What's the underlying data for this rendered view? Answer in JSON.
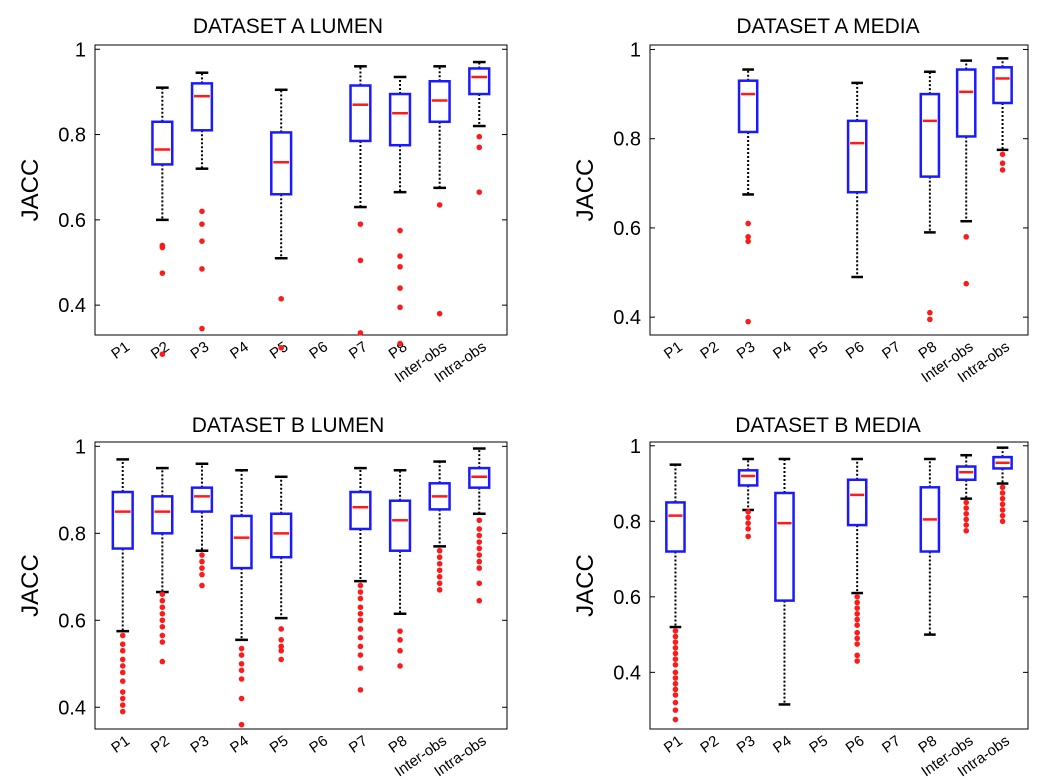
{
  "chart_data": [
    {
      "type": "box",
      "title": "DATASET  A  LUMEN",
      "ylabel": "JACC",
      "ylim": [
        0.33,
        1.01
      ],
      "yticks": [
        "0.4",
        "0.6",
        "0.8",
        "1"
      ],
      "categories": [
        "P1",
        "P2",
        "P3",
        "P4",
        "P5",
        "P6",
        "P7",
        "P8",
        "Inter-obs",
        "Intra-obs"
      ],
      "boxes": [
        null,
        {
          "whisker_low": 0.6,
          "q1": 0.73,
          "median": 0.765,
          "q3": 0.83,
          "whisker_high": 0.91,
          "outliers": [
            0.54,
            0.535,
            0.475,
            0.285
          ]
        },
        {
          "whisker_low": 0.72,
          "q1": 0.81,
          "median": 0.89,
          "q3": 0.92,
          "whisker_high": 0.945,
          "outliers": [
            0.62,
            0.59,
            0.55,
            0.485,
            0.345
          ]
        },
        null,
        {
          "whisker_low": 0.51,
          "q1": 0.66,
          "median": 0.735,
          "q3": 0.805,
          "whisker_high": 0.905,
          "outliers": [
            0.415,
            0.3
          ]
        },
        null,
        {
          "whisker_low": 0.63,
          "q1": 0.785,
          "median": 0.87,
          "q3": 0.915,
          "whisker_high": 0.96,
          "outliers": [
            0.59,
            0.505,
            0.335
          ]
        },
        {
          "whisker_low": 0.665,
          "q1": 0.775,
          "median": 0.85,
          "q3": 0.895,
          "whisker_high": 0.935,
          "outliers": [
            0.575,
            0.515,
            0.49,
            0.44,
            0.395,
            0.31
          ]
        },
        {
          "whisker_low": 0.675,
          "q1": 0.83,
          "median": 0.88,
          "q3": 0.925,
          "whisker_high": 0.96,
          "outliers": [
            0.635,
            0.38
          ]
        },
        {
          "whisker_low": 0.82,
          "q1": 0.895,
          "median": 0.935,
          "q3": 0.955,
          "whisker_high": 0.97,
          "outliers": [
            0.795,
            0.77,
            0.665
          ]
        }
      ]
    },
    {
      "type": "box",
      "title": "DATASET  A  MEDIA",
      "ylabel": "JACC",
      "ylim": [
        0.36,
        1.01
      ],
      "yticks": [
        "0.4",
        "0.6",
        "0.8",
        "1"
      ],
      "categories": [
        "P1",
        "P2",
        "P3",
        "P4",
        "P5",
        "P6",
        "P7",
        "P8",
        "Inter-obs",
        "Intra-obs"
      ],
      "boxes": [
        null,
        null,
        {
          "whisker_low": 0.675,
          "q1": 0.815,
          "median": 0.9,
          "q3": 0.93,
          "whisker_high": 0.955,
          "outliers": [
            0.61,
            0.58,
            0.57,
            0.39
          ]
        },
        null,
        null,
        {
          "whisker_low": 0.49,
          "q1": 0.68,
          "median": 0.79,
          "q3": 0.84,
          "whisker_high": 0.925,
          "outliers": []
        },
        null,
        {
          "whisker_low": 0.59,
          "q1": 0.715,
          "median": 0.84,
          "q3": 0.9,
          "whisker_high": 0.95,
          "outliers": [
            0.41,
            0.395
          ]
        },
        {
          "whisker_low": 0.615,
          "q1": 0.805,
          "median": 0.905,
          "q3": 0.955,
          "whisker_high": 0.975,
          "outliers": [
            0.58,
            0.475
          ]
        },
        {
          "whisker_low": 0.775,
          "q1": 0.88,
          "median": 0.935,
          "q3": 0.96,
          "whisker_high": 0.98,
          "outliers": [
            0.765,
            0.745,
            0.73
          ]
        }
      ]
    },
    {
      "type": "box",
      "title": "DATASET  B  LUMEN",
      "ylabel": "JACC",
      "ylim": [
        0.35,
        1.01
      ],
      "yticks": [
        "0.4",
        "0.6",
        "0.8",
        "1"
      ],
      "categories": [
        "P1",
        "P2",
        "P3",
        "P4",
        "P5",
        "P6",
        "P7",
        "P8",
        "Inter-obs",
        "Intra-obs"
      ],
      "boxes": [
        {
          "whisker_low": 0.575,
          "q1": 0.765,
          "median": 0.85,
          "q3": 0.895,
          "whisker_high": 0.97,
          "outliers": [
            0.565,
            0.545,
            0.53,
            0.51,
            0.495,
            0.48,
            0.46,
            0.435,
            0.42,
            0.405,
            0.39
          ]
        },
        {
          "whisker_low": 0.665,
          "q1": 0.8,
          "median": 0.85,
          "q3": 0.885,
          "whisker_high": 0.95,
          "outliers": [
            0.66,
            0.645,
            0.63,
            0.615,
            0.6,
            0.585,
            0.565,
            0.55,
            0.505
          ]
        },
        {
          "whisker_low": 0.76,
          "q1": 0.85,
          "median": 0.885,
          "q3": 0.905,
          "whisker_high": 0.96,
          "outliers": [
            0.75,
            0.735,
            0.72,
            0.705,
            0.68
          ]
        },
        {
          "whisker_low": 0.555,
          "q1": 0.72,
          "median": 0.79,
          "q3": 0.84,
          "whisker_high": 0.945,
          "outliers": [
            0.535,
            0.52,
            0.5,
            0.485,
            0.465,
            0.42,
            0.36
          ]
        },
        {
          "whisker_low": 0.605,
          "q1": 0.745,
          "median": 0.8,
          "q3": 0.845,
          "whisker_high": 0.93,
          "outliers": [
            0.58,
            0.555,
            0.54,
            0.53,
            0.51
          ]
        },
        null,
        {
          "whisker_low": 0.69,
          "q1": 0.81,
          "median": 0.86,
          "q3": 0.895,
          "whisker_high": 0.95,
          "outliers": [
            0.68,
            0.665,
            0.65,
            0.63,
            0.615,
            0.6,
            0.58,
            0.56,
            0.54,
            0.52,
            0.49,
            0.44
          ]
        },
        {
          "whisker_low": 0.615,
          "q1": 0.76,
          "median": 0.83,
          "q3": 0.875,
          "whisker_high": 0.945,
          "outliers": [
            0.575,
            0.555,
            0.53,
            0.495
          ]
        },
        {
          "whisker_low": 0.77,
          "q1": 0.855,
          "median": 0.885,
          "q3": 0.915,
          "whisker_high": 0.965,
          "outliers": [
            0.76,
            0.745,
            0.73,
            0.715,
            0.7,
            0.685,
            0.67
          ]
        },
        {
          "whisker_low": 0.845,
          "q1": 0.905,
          "median": 0.93,
          "q3": 0.95,
          "whisker_high": 0.995,
          "outliers": [
            0.83,
            0.81,
            0.795,
            0.78,
            0.765,
            0.75,
            0.735,
            0.72,
            0.685,
            0.645
          ]
        }
      ]
    },
    {
      "type": "box",
      "title": "DATASET  B  MEDIA",
      "ylabel": "JACC",
      "ylim": [
        0.25,
        1.01
      ],
      "yticks": [
        "0.4",
        "0.6",
        "0.8",
        "1"
      ],
      "categories": [
        "P1",
        "P2",
        "P3",
        "P4",
        "P5",
        "P6",
        "P7",
        "P8",
        "Inter-obs",
        "Intra-obs"
      ],
      "boxes": [
        {
          "whisker_low": 0.52,
          "q1": 0.72,
          "median": 0.815,
          "q3": 0.85,
          "whisker_high": 0.95,
          "outliers": [
            0.51,
            0.495,
            0.48,
            0.465,
            0.45,
            0.435,
            0.42,
            0.4,
            0.385,
            0.37,
            0.355,
            0.34,
            0.32,
            0.3,
            0.275
          ]
        },
        null,
        {
          "whisker_low": 0.83,
          "q1": 0.895,
          "median": 0.92,
          "q3": 0.935,
          "whisker_high": 0.965,
          "outliers": [
            0.825,
            0.81,
            0.795,
            0.78,
            0.76
          ]
        },
        {
          "whisker_low": 0.315,
          "q1": 0.59,
          "median": 0.795,
          "q3": 0.875,
          "whisker_high": 0.965,
          "outliers": []
        },
        null,
        {
          "whisker_low": 0.61,
          "q1": 0.79,
          "median": 0.87,
          "q3": 0.91,
          "whisker_high": 0.965,
          "outliers": [
            0.6,
            0.585,
            0.57,
            0.555,
            0.54,
            0.525,
            0.505,
            0.49,
            0.475,
            0.445,
            0.43
          ]
        },
        null,
        {
          "whisker_low": 0.5,
          "q1": 0.72,
          "median": 0.805,
          "q3": 0.89,
          "whisker_high": 0.965,
          "outliers": []
        },
        {
          "whisker_low": 0.86,
          "q1": 0.91,
          "median": 0.93,
          "q3": 0.945,
          "whisker_high": 0.975,
          "outliers": [
            0.85,
            0.835,
            0.82,
            0.805,
            0.79,
            0.775
          ]
        },
        {
          "whisker_low": 0.9,
          "q1": 0.94,
          "median": 0.955,
          "q3": 0.97,
          "whisker_high": 0.995,
          "outliers": [
            0.89,
            0.875,
            0.86,
            0.845,
            0.83,
            0.815,
            0.8
          ]
        }
      ]
    }
  ]
}
